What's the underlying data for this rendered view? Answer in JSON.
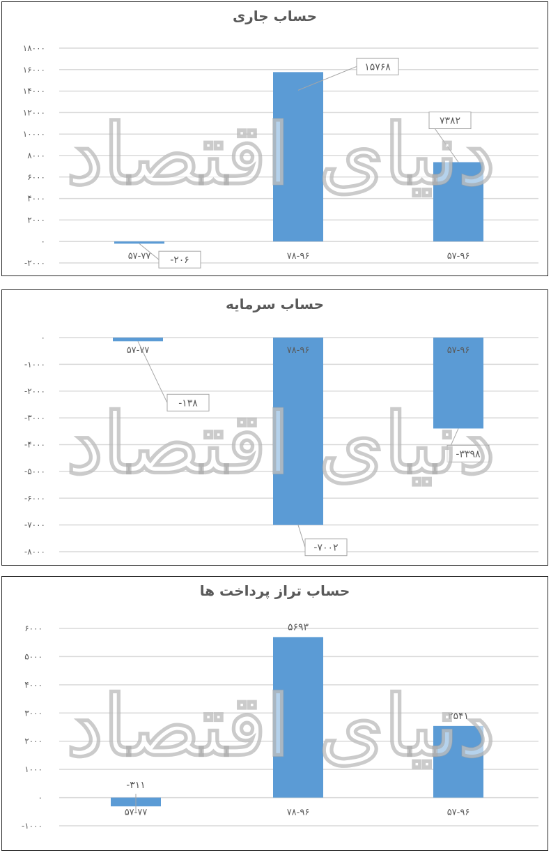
{
  "colors": {
    "bar": "#5b9bd5",
    "grid": "#d9d9d9",
    "text": "#595959",
    "label_border": "#a6a6a6"
  },
  "watermark_text": "دنیای اقتصاد",
  "chart_data": [
    {
      "type": "bar",
      "title": "حساب جاری",
      "categories": [
        "۵۷-۷۷",
        "۷۸-۹۶",
        "۵۷-۹۶"
      ],
      "values": [
        -206,
        15768,
        7382
      ],
      "value_labels": [
        "-۲۰۶",
        "۱۵۷۶۸",
        "۷۳۸۲"
      ],
      "yticks": [
        18000,
        16000,
        14000,
        12000,
        10000,
        8000,
        6000,
        4000,
        2000,
        0,
        -2000
      ],
      "ytick_labels": [
        "۱۸۰۰۰",
        "۱۶۰۰۰",
        "۱۴۰۰۰",
        "۱۲۰۰۰",
        "۱۰۰۰۰",
        "۸۰۰۰",
        "۶۰۰۰",
        "۴۰۰۰",
        "۲۰۰۰",
        "۰",
        "-۲۰۰۰"
      ],
      "ylim": [
        -2000,
        18000
      ],
      "grid": true
    },
    {
      "type": "bar",
      "title": "حساب سرمایه",
      "categories": [
        "۵۷-۷۷",
        "۷۸-۹۶",
        "۵۷-۹۶"
      ],
      "values": [
        -138,
        -7002,
        -3398
      ],
      "value_labels": [
        "-۱۳۸",
        "-۷۰۰۲",
        "-۳۳۹۸"
      ],
      "yticks": [
        0,
        -1000,
        -2000,
        -3000,
        -4000,
        -5000,
        -6000,
        -7000,
        -8000
      ],
      "ytick_labels": [
        "۰",
        "-۱۰۰۰",
        "-۲۰۰۰",
        "-۳۰۰۰",
        "-۴۰۰۰",
        "-۵۰۰۰",
        "-۶۰۰۰",
        "-۷۰۰۰",
        "-۸۰۰۰"
      ],
      "ylim": [
        -8000,
        0
      ],
      "grid": true
    },
    {
      "type": "bar",
      "title": "حساب تراز پرداخت ها",
      "categories": [
        "۵۷-۷۷",
        "۷۸-۹۶",
        "۵۷-۹۶"
      ],
      "values": [
        -311,
        5693,
        2541
      ],
      "value_labels": [
        "-۳۱۱",
        "۵۶۹۳",
        "۲۵۴۱"
      ],
      "yticks": [
        6000,
        5000,
        4000,
        3000,
        2000,
        1000,
        0,
        -1000
      ],
      "ytick_labels": [
        "۶۰۰۰",
        "۵۰۰۰",
        "۴۰۰۰",
        "۳۰۰۰",
        "۲۰۰۰",
        "۱۰۰۰",
        "۰",
        "-۱۰۰۰"
      ],
      "ylim": [
        -1000,
        6000
      ],
      "grid": true
    }
  ]
}
